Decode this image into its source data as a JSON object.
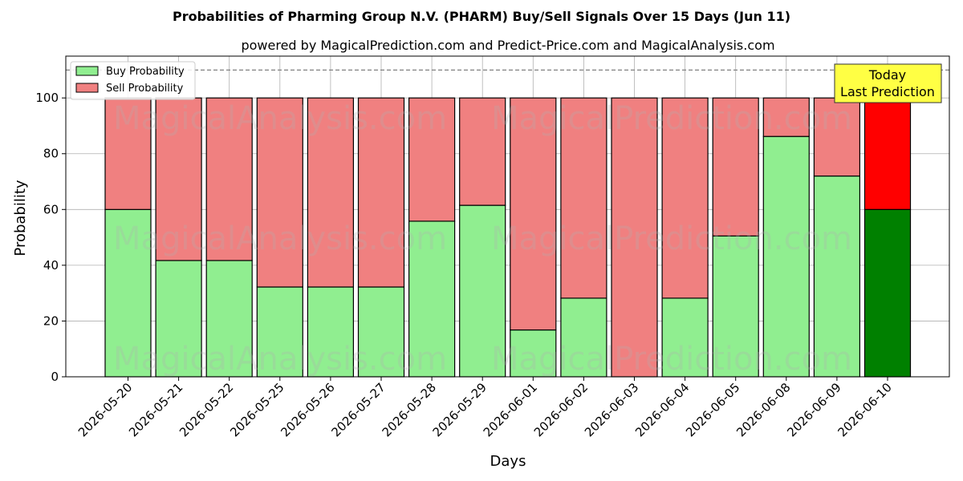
{
  "chart_data": {
    "type": "bar",
    "stacked": true,
    "title": "Probabilities of Pharming Group N.V. (PHARM) Buy/Sell Signals Over 15 Days (Jun 11)",
    "subtitle": "powered by MagicalPrediction.com and Predict-Price.com and MagicalAnalysis.com",
    "xlabel": "Days",
    "ylabel": "Probability",
    "ylim": [
      0,
      115
    ],
    "yticks": [
      0,
      20,
      40,
      60,
      80,
      100
    ],
    "reference_line": 110,
    "grid": true,
    "legend_position": "top-left",
    "categories": [
      "2026-05-20",
      "2026-05-21",
      "2026-05-22",
      "2026-05-25",
      "2026-05-26",
      "2026-05-27",
      "2026-05-28",
      "2026-05-29",
      "2026-06-01",
      "2026-06-02",
      "2026-06-03",
      "2026-06-04",
      "2026-06-05",
      "2026-06-08",
      "2026-06-09",
      "2026-06-10"
    ],
    "series": [
      {
        "name": "Buy Probability",
        "color": "#90ee90",
        "highlight_color": "#008000",
        "values": [
          60,
          41.7,
          41.7,
          32.2,
          32.2,
          32.2,
          55.8,
          61.5,
          16.8,
          28.2,
          0,
          28.2,
          50.5,
          86.2,
          72,
          60
        ]
      },
      {
        "name": "Sell Probability",
        "color": "#f08080",
        "highlight_color": "#ff0000",
        "values": [
          40,
          58.3,
          58.3,
          67.8,
          67.8,
          67.8,
          44.2,
          38.5,
          83.2,
          71.8,
          100,
          71.8,
          49.5,
          13.8,
          28,
          40
        ]
      }
    ],
    "annotation": {
      "lines": [
        "Today",
        "Last Prediction"
      ],
      "color": "#ffff44"
    },
    "watermarks": [
      "MagicalAnalysis.com",
      "MagicalPrediction.com"
    ]
  }
}
